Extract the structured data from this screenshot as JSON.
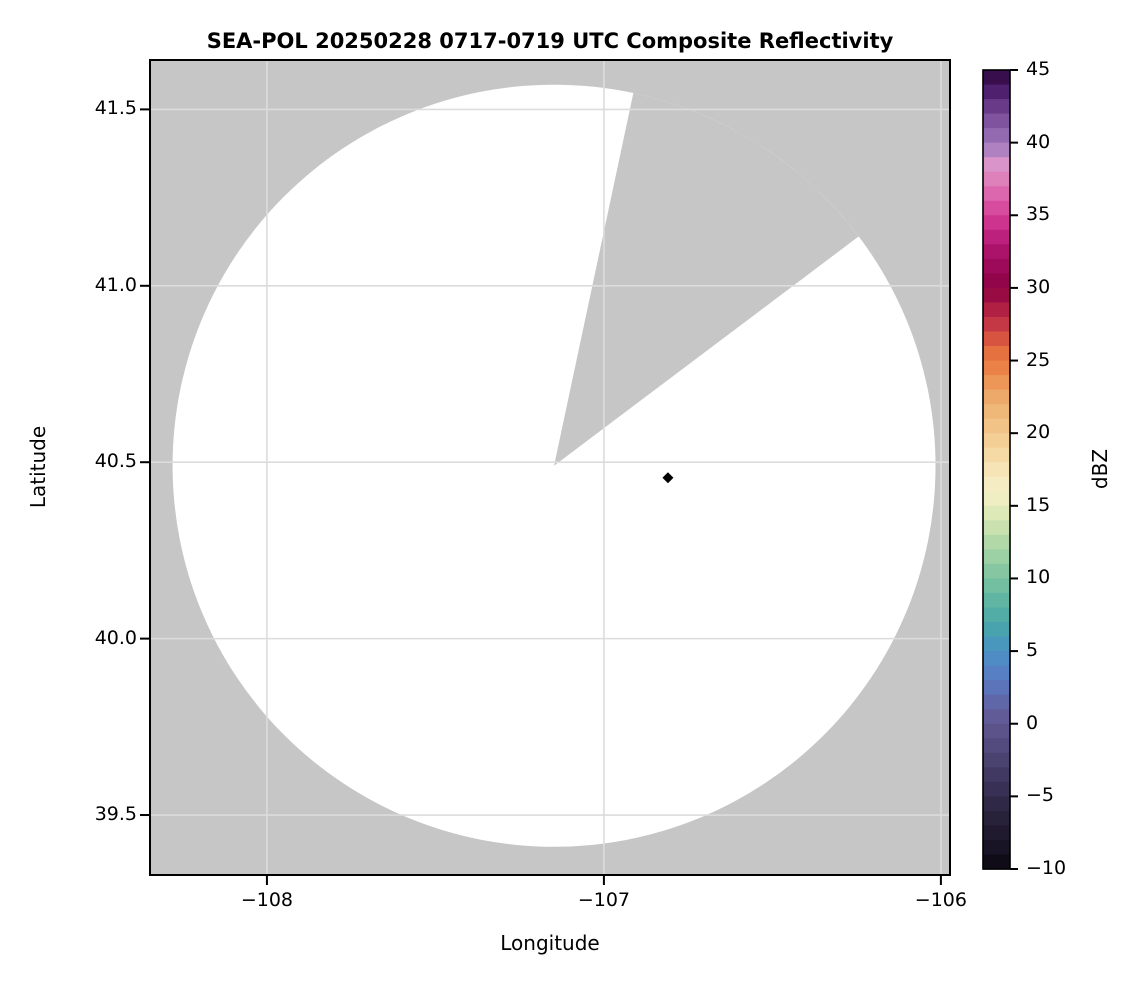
{
  "title": "SEA-POL 20250228 0717-0719 UTC Composite Reflectivity",
  "colors": {
    "no_data_gray": "#c6c6c6",
    "coverage_white": "#ffffff",
    "grid": "#dcdcdc",
    "spine": "#000000",
    "marker": "#000000",
    "text": "#000000"
  },
  "chart_data": {
    "type": "heatmap",
    "title": "SEA-POL 20250228 0717-0719 UTC Composite Reflectivity",
    "xlabel": "Longitude",
    "ylabel": "Latitude",
    "xlim": [
      -108.347,
      -105.973
    ],
    "ylim": [
      39.33,
      41.64
    ],
    "grid": true,
    "x_ticks": [
      {
        "value": -108,
        "label": "−108"
      },
      {
        "value": -107,
        "label": "−107"
      },
      {
        "value": -106,
        "label": "−106"
      }
    ],
    "y_ticks": [
      {
        "value": 41.5,
        "label": "41.5"
      },
      {
        "value": 41.0,
        "label": "41.0"
      },
      {
        "value": 40.5,
        "label": "40.5"
      },
      {
        "value": 40.0,
        "label": "40.0"
      },
      {
        "value": 39.5,
        "label": "39.5"
      }
    ],
    "radar_coverage": {
      "center_lon": -107.148,
      "center_lat": 40.49,
      "radius_lon_deg": 1.132,
      "radius_lat_deg": 1.08,
      "blocked_sector_azimuth_deg": [
        12,
        53
      ],
      "note": "coverage disk is blank (no reflectivity echoes >= -10 dBZ); outside coverage and inside blocked sector shown as no-data gray"
    },
    "marker_point": {
      "shape": "diamond",
      "lon": -106.81,
      "lat": 40.456,
      "color": "#000000"
    },
    "colorbar": {
      "label": "dBZ",
      "vmin": -10,
      "vmax": 45,
      "band_step_dbz": 1,
      "ticks": [
        {
          "value": 45,
          "label": "45"
        },
        {
          "value": 40,
          "label": "40"
        },
        {
          "value": 35,
          "label": "35"
        },
        {
          "value": 30,
          "label": "30"
        },
        {
          "value": 25,
          "label": "25"
        },
        {
          "value": 20,
          "label": "20"
        },
        {
          "value": 15,
          "label": "15"
        },
        {
          "value": 10,
          "label": "10"
        },
        {
          "value": 5,
          "label": "5"
        },
        {
          "value": 0,
          "label": "0"
        },
        {
          "value": -5,
          "label": "−5"
        },
        {
          "value": -10,
          "label": "−10"
        }
      ],
      "anchors": [
        [
          -10,
          "#0a080e"
        ],
        [
          -9,
          "#141021"
        ],
        [
          -8,
          "#1c1728"
        ],
        [
          -7,
          "#241d33"
        ],
        [
          -6,
          "#2c2440"
        ],
        [
          -5,
          "#342c4e"
        ],
        [
          -4,
          "#3d355b"
        ],
        [
          -3,
          "#453d68"
        ],
        [
          -2,
          "#4e4676"
        ],
        [
          -1,
          "#574e83"
        ],
        [
          0,
          "#605791"
        ],
        [
          1,
          "#62619f"
        ],
        [
          2,
          "#5e6db2"
        ],
        [
          3,
          "#597ac0"
        ],
        [
          4,
          "#5285c6"
        ],
        [
          5,
          "#4b90c4"
        ],
        [
          6,
          "#489eb6"
        ],
        [
          7,
          "#4aa8a7"
        ],
        [
          8,
          "#57b1a3"
        ],
        [
          9,
          "#68baa2"
        ],
        [
          10,
          "#7bc3a1"
        ],
        [
          11,
          "#90cba3"
        ],
        [
          12,
          "#a7d4a6"
        ],
        [
          13,
          "#bcdcaa"
        ],
        [
          14,
          "#d3e5b2"
        ],
        [
          15,
          "#e8edbd"
        ],
        [
          16,
          "#f4efc6"
        ],
        [
          17,
          "#f6e8c0"
        ],
        [
          18,
          "#f6dfae"
        ],
        [
          19,
          "#f4d49e"
        ],
        [
          20,
          "#f2c98e"
        ],
        [
          21,
          "#f0bd7f"
        ],
        [
          22,
          "#eeb071"
        ],
        [
          23,
          "#eca263"
        ],
        [
          24,
          "#ec8a4b"
        ],
        [
          25,
          "#e87943"
        ],
        [
          26,
          "#e2663c"
        ],
        [
          27,
          "#cc4245"
        ],
        [
          28,
          "#bb2c44"
        ],
        [
          29,
          "#a31342"
        ],
        [
          30,
          "#8e0343"
        ],
        [
          31,
          "#970751"
        ],
        [
          32,
          "#a30d62"
        ],
        [
          33,
          "#b31873"
        ],
        [
          34,
          "#c52a86"
        ],
        [
          35,
          "#d43d96"
        ],
        [
          36,
          "#da5aa8"
        ],
        [
          37,
          "#df74b4"
        ],
        [
          38,
          "#dd8ec2"
        ],
        [
          39,
          "#d49ad0"
        ],
        [
          39.6,
          "#a87cbd"
        ],
        [
          40,
          "#9b74b8"
        ],
        [
          41,
          "#8a5fa8"
        ],
        [
          42,
          "#744694"
        ],
        [
          43,
          "#5c2d7c"
        ],
        [
          44,
          "#421360"
        ],
        [
          45,
          "#2e0839"
        ]
      ]
    }
  }
}
